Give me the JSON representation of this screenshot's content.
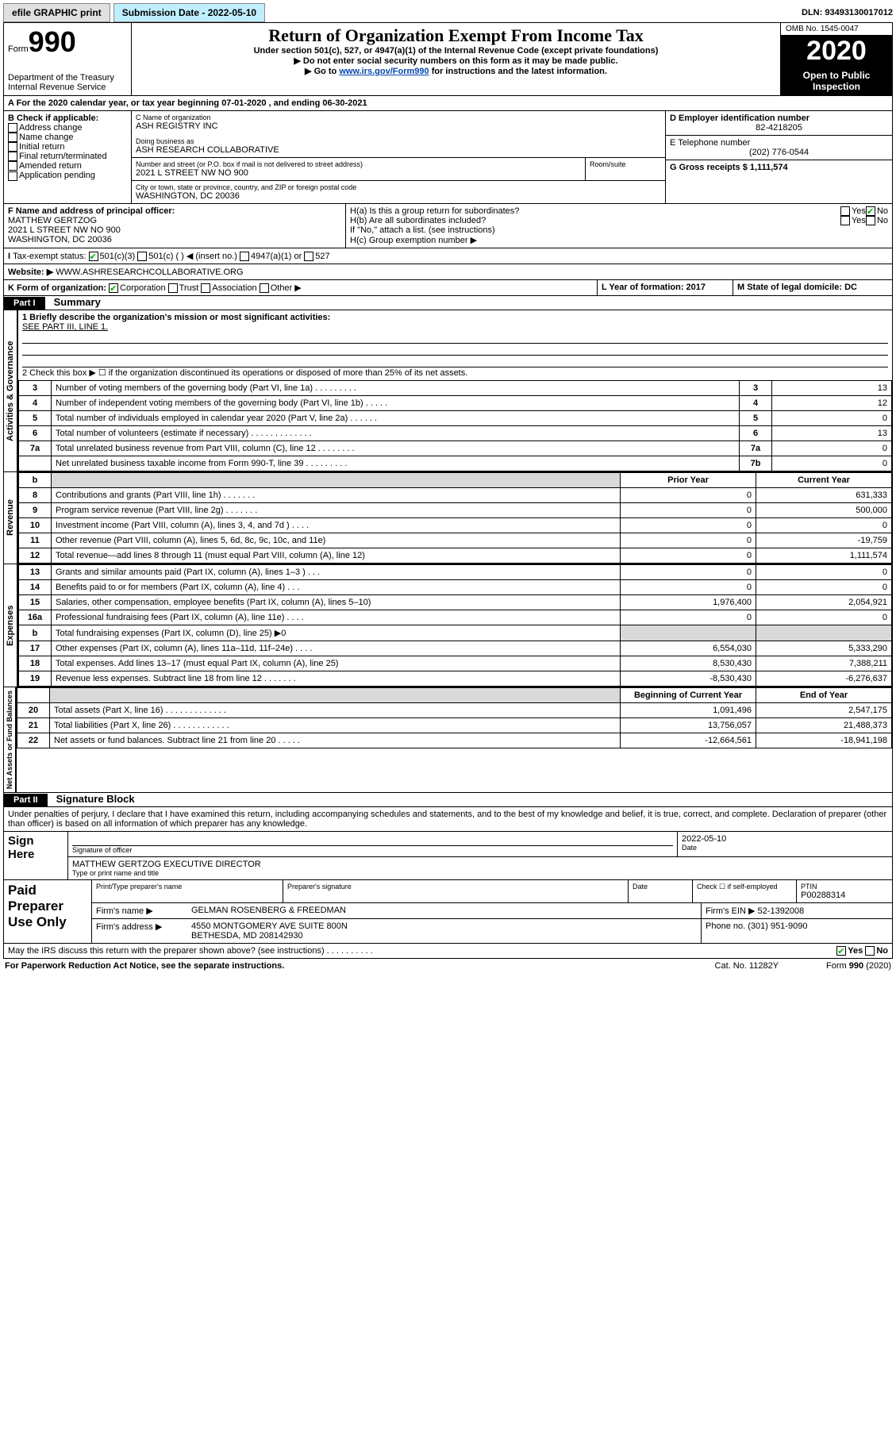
{
  "topbar": {
    "efile": "efile GRAPHIC print",
    "submission": "Submission Date - 2022-05-10",
    "dln": "DLN: 93493130017012"
  },
  "header": {
    "form_label": "Form",
    "form_no": "990",
    "dept": "Department of the Treasury",
    "irs": "Internal Revenue Service",
    "title": "Return of Organization Exempt From Income Tax",
    "sub1": "Under section 501(c), 527, or 4947(a)(1) of the Internal Revenue Code (except private foundations)",
    "sub2": "▶ Do not enter social security numbers on this form as it may be made public.",
    "sub3_pre": "▶ Go to ",
    "sub3_link": "www.irs.gov/Form990",
    "sub3_post": " for instructions and the latest information.",
    "omb": "OMB No. 1545-0047",
    "year": "2020",
    "open": "Open to Public Inspection"
  },
  "A": {
    "text": "A For the 2020 calendar year, or tax year beginning 07-01-2020     , and ending 06-30-2021"
  },
  "B": {
    "label": "B Check if applicable:",
    "items": [
      "Address change",
      "Name change",
      "Initial return",
      "Final return/terminated",
      "Amended return",
      "Application pending"
    ]
  },
  "C": {
    "label": "C Name of organization",
    "name": "ASH REGISTRY INC",
    "dba_label": "Doing business as",
    "dba": "ASH RESEARCH COLLABORATIVE",
    "addr_label": "Number and street (or P.O. box if mail is not delivered to street address)",
    "room": "Room/suite",
    "street": "2021 L STREET NW NO 900",
    "city_label": "City or town, state or province, country, and ZIP or foreign postal code",
    "city": "WASHINGTON, DC  20036"
  },
  "D": {
    "label": "D Employer identification number",
    "val": "82-4218205"
  },
  "E": {
    "label": "E Telephone number",
    "val": "(202) 776-0544"
  },
  "G": {
    "label": "G Gross receipts $ 1,111,574"
  },
  "F": {
    "label": "F  Name and address of principal officer:",
    "name": "MATTHEW GERTZOG",
    "l1": "2021 L STREET NW NO 900",
    "l2": "WASHINGTON, DC  20036"
  },
  "H": {
    "a": "H(a)  Is this a group return for subordinates?",
    "b": "H(b)  Are all subordinates included?",
    "bnote": "If \"No,\" attach a list. (see instructions)",
    "c": "H(c)  Group exemption number ▶",
    "yes": "Yes",
    "no": "No"
  },
  "I": {
    "label": "Tax-exempt status:",
    "o1": "501(c)(3)",
    "o2": "501(c) (   ) ◀ (insert no.)",
    "o3": "4947(a)(1) or",
    "o4": "527"
  },
  "J": {
    "label": "Website: ▶",
    "val": "WWW.ASHRESEARCHCOLLABORATIVE.ORG"
  },
  "K": {
    "label": "K Form of organization:",
    "c": "Corporation",
    "t": "Trust",
    "a": "Association",
    "o": "Other ▶"
  },
  "L": {
    "label": "L Year of formation: 2017"
  },
  "M": {
    "label": "M State of legal domicile: DC"
  },
  "part1": {
    "band": "Part I",
    "title": "Summary",
    "line1": "1   Briefly describe the organization's mission or most significant activities:",
    "line1v": "SEE PART III, LINE 1.",
    "line2": "2   Check this box ▶ ☐  if the organization discontinued its operations or disposed of more than 25% of its net assets.",
    "gov_label": "Activities & Governance",
    "rev_label": "Revenue",
    "exp_label": "Expenses",
    "na_label": "Net Assets or Fund Balances",
    "rows": [
      {
        "n": "3",
        "t": "Number of voting members of the governing body (Part VI, line 1a)  .  .  .  .  .  .  .  .  .",
        "rn": "3",
        "v": "13"
      },
      {
        "n": "4",
        "t": "Number of independent voting members of the governing body (Part VI, line 1b)  .  .  .  .  .",
        "rn": "4",
        "v": "12"
      },
      {
        "n": "5",
        "t": "Total number of individuals employed in calendar year 2020 (Part V, line 2a)  .  .  .  .  .  .",
        "rn": "5",
        "v": "0"
      },
      {
        "n": "6",
        "t": "Total number of volunteers (estimate if necessary)   .   .   .   .   .   .   .   .   .   .   .   .   .",
        "rn": "6",
        "v": "13"
      },
      {
        "n": "7a",
        "t": "Total unrelated business revenue from Part VIII, column (C), line 12  .   .   .   .   .   .   .   .",
        "rn": "7a",
        "v": "0"
      },
      {
        "n": "",
        "t": "Net unrelated business taxable income from Form 990-T, line 39  .   .   .   .   .   .   .   .   .",
        "rn": "7b",
        "v": "0"
      }
    ],
    "py": "Prior Year",
    "cy": "Current Year",
    "rev": [
      {
        "n": "8",
        "t": "Contributions and grants (Part VIII, line 1h)  .    .    .    .    .    .    .",
        "p": "0",
        "c": "631,333"
      },
      {
        "n": "9",
        "t": "Program service revenue (Part VIII, line 2g)  .    .    .    .    .    .    .",
        "p": "0",
        "c": "500,000"
      },
      {
        "n": "10",
        "t": "Investment income (Part VIII, column (A), lines 3, 4, and 7d )  .    .    .    .",
        "p": "0",
        "c": "0"
      },
      {
        "n": "11",
        "t": "Other revenue (Part VIII, column (A), lines 5, 6d, 8c, 9c, 10c, and 11e)",
        "p": "0",
        "c": "-19,759"
      },
      {
        "n": "12",
        "t": "Total revenue—add lines 8 through 11 (must equal Part VIII, column (A), line 12)",
        "p": "0",
        "c": "1,111,574"
      }
    ],
    "exp": [
      {
        "n": "13",
        "t": "Grants and similar amounts paid (Part IX, column (A), lines 1–3 )  .    .    .",
        "p": "0",
        "c": "0"
      },
      {
        "n": "14",
        "t": "Benefits paid to or for members (Part IX, column (A), line 4)  .    .    .",
        "p": "0",
        "c": "0"
      },
      {
        "n": "15",
        "t": "Salaries, other compensation, employee benefits (Part IX, column (A), lines 5–10)",
        "p": "1,976,400",
        "c": "2,054,921"
      },
      {
        "n": "16a",
        "t": "Professional fundraising fees (Part IX, column (A), line 11e)  .    .    .    .",
        "p": "0",
        "c": "0"
      },
      {
        "n": "b",
        "t": "Total fundraising expenses (Part IX, column (D), line 25) ▶0",
        "p": "",
        "c": "",
        "shade": true
      },
      {
        "n": "17",
        "t": "Other expenses (Part IX, column (A), lines 11a–11d, 11f–24e)  .    .    .    .",
        "p": "6,554,030",
        "c": "5,333,290"
      },
      {
        "n": "18",
        "t": "Total expenses. Add lines 13–17 (must equal Part IX, column (A), line 25)",
        "p": "8,530,430",
        "c": "7,388,211"
      },
      {
        "n": "19",
        "t": "Revenue less expenses. Subtract line 18 from line 12  .    .    .    .    .    .    .",
        "p": "-8,530,430",
        "c": "-6,276,637"
      }
    ],
    "boy": "Beginning of Current Year",
    "eoy": "End of Year",
    "na": [
      {
        "n": "20",
        "t": "Total assets (Part X, line 16)  .    .    .    .    .    .    .    .    .    .    .    .    .",
        "p": "1,091,496",
        "c": "2,547,175"
      },
      {
        "n": "21",
        "t": "Total liabilities (Part X, line 26)  .    .    .    .    .    .    .    .    .    .    .    .",
        "p": "13,756,057",
        "c": "21,488,373"
      },
      {
        "n": "22",
        "t": "Net assets or fund balances. Subtract line 21 from line 20  .    .    .    .    .",
        "p": "-12,664,561",
        "c": "-18,941,198"
      }
    ]
  },
  "part2": {
    "band": "Part II",
    "title": "Signature Block",
    "perjury": "Under penalties of perjury, I declare that I have examined this return, including accompanying schedules and statements, and to the best of my knowledge and belief, it is true, correct, and complete. Declaration of preparer (other than officer) is based on all information of which preparer has any knowledge.",
    "sign": "Sign Here",
    "sig_officer": "Signature of officer",
    "date": "Date",
    "datev": "2022-05-10",
    "name": "MATTHEW GERTZOG  EXECUTIVE DIRECTOR",
    "name_label": "Type or print name and title",
    "paid": "Paid Preparer Use Only",
    "pt_name": "Print/Type preparer's name",
    "pt_sig": "Preparer's signature",
    "pt_date": "Date",
    "pt_check": "Check ☐  if self-employed",
    "ptin_label": "PTIN",
    "ptin": "P00288314",
    "firm_name_l": "Firm's name    ▶",
    "firm_name": "GELMAN ROSENBERG & FREEDMAN",
    "ein_l": "Firm's EIN ▶ 52-1392008",
    "firm_addr_l": "Firm's address ▶",
    "firm_addr1": "4550 MONTGOMERY AVE SUITE 800N",
    "firm_addr2": "BETHESDA, MD  208142930",
    "phone_l": "Phone no. (301) 951-9090",
    "discuss": "May the IRS discuss this return with the preparer shown above? (see instructions)   .    .    .    .    .    .    .    .    .    .",
    "yes": "Yes",
    "no": "No"
  },
  "footer": {
    "l": "For Paperwork Reduction Act Notice, see the separate instructions.",
    "c": "Cat. No. 11282Y",
    "r": "Form 990 (2020)"
  }
}
